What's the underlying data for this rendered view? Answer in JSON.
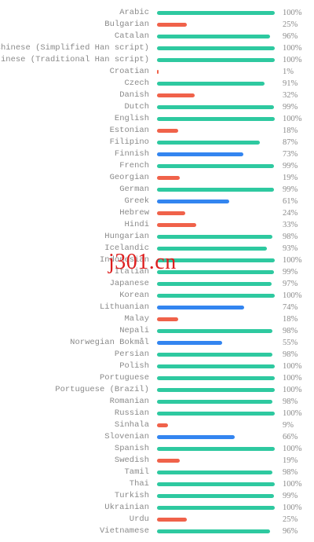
{
  "colors": {
    "high": "#2ec9a0",
    "medium": "#3385f0",
    "low": "#f0624a"
  },
  "watermark": "j301.cn",
  "languages": [
    {
      "name": "Arabic",
      "percent_label": "100%",
      "value": 100,
      "level": "high"
    },
    {
      "name": "Bulgarian",
      "percent_label": "25%",
      "value": 25,
      "level": "low"
    },
    {
      "name": "Catalan",
      "percent_label": "96%",
      "value": 96,
      "level": "high"
    },
    {
      "name": "Chinese (Simplified Han script)",
      "percent_label": "100%",
      "value": 100,
      "level": "high"
    },
    {
      "name": "Chinese (Traditional Han script)",
      "percent_label": "100%",
      "value": 100,
      "level": "high"
    },
    {
      "name": "Croatian",
      "percent_label": "1%",
      "value": 1,
      "level": "low"
    },
    {
      "name": "Czech",
      "percent_label": "91%",
      "value": 91,
      "level": "high"
    },
    {
      "name": "Danish",
      "percent_label": "32%",
      "value": 32,
      "level": "low"
    },
    {
      "name": "Dutch",
      "percent_label": "99%",
      "value": 99,
      "level": "high"
    },
    {
      "name": "English",
      "percent_label": "100%",
      "value": 100,
      "level": "high"
    },
    {
      "name": "Estonian",
      "percent_label": "18%",
      "value": 18,
      "level": "low"
    },
    {
      "name": "Filipino",
      "percent_label": "87%",
      "value": 87,
      "level": "high"
    },
    {
      "name": "Finnish",
      "percent_label": "73%",
      "value": 73,
      "level": "medium"
    },
    {
      "name": "French",
      "percent_label": "99%",
      "value": 99,
      "level": "high"
    },
    {
      "name": "Georgian",
      "percent_label": "19%",
      "value": 19,
      "level": "low"
    },
    {
      "name": "German",
      "percent_label": "99%",
      "value": 99,
      "level": "high"
    },
    {
      "name": "Greek",
      "percent_label": "61%",
      "value": 61,
      "level": "medium"
    },
    {
      "name": "Hebrew",
      "percent_label": "24%",
      "value": 24,
      "level": "low"
    },
    {
      "name": "Hindi",
      "percent_label": "33%",
      "value": 33,
      "level": "low"
    },
    {
      "name": "Hungarian",
      "percent_label": "98%",
      "value": 98,
      "level": "high"
    },
    {
      "name": "Icelandic",
      "percent_label": "93%",
      "value": 93,
      "level": "high"
    },
    {
      "name": "Indonesian",
      "percent_label": "100%",
      "value": 100,
      "level": "high"
    },
    {
      "name": "Italian",
      "percent_label": "99%",
      "value": 99,
      "level": "high"
    },
    {
      "name": "Japanese",
      "percent_label": "97%",
      "value": 97,
      "level": "high"
    },
    {
      "name": "Korean",
      "percent_label": "100%",
      "value": 100,
      "level": "high"
    },
    {
      "name": "Lithuanian",
      "percent_label": "74%",
      "value": 74,
      "level": "medium"
    },
    {
      "name": "Malay",
      "percent_label": "18%",
      "value": 18,
      "level": "low"
    },
    {
      "name": "Nepali",
      "percent_label": "98%",
      "value": 98,
      "level": "high"
    },
    {
      "name": "Norwegian Bokmål",
      "percent_label": "55%",
      "value": 55,
      "level": "medium"
    },
    {
      "name": "Persian",
      "percent_label": "98%",
      "value": 98,
      "level": "high"
    },
    {
      "name": "Polish",
      "percent_label": "100%",
      "value": 100,
      "level": "high"
    },
    {
      "name": "Portuguese",
      "percent_label": "100%",
      "value": 100,
      "level": "high"
    },
    {
      "name": "Portuguese (Brazil)",
      "percent_label": "100%",
      "value": 100,
      "level": "high"
    },
    {
      "name": "Romanian",
      "percent_label": "98%",
      "value": 98,
      "level": "high"
    },
    {
      "name": "Russian",
      "percent_label": "100%",
      "value": 100,
      "level": "high"
    },
    {
      "name": "Sinhala",
      "percent_label": "9%",
      "value": 9,
      "level": "low"
    },
    {
      "name": "Slovenian",
      "percent_label": "66%",
      "value": 66,
      "level": "medium"
    },
    {
      "name": "Spanish",
      "percent_label": "100%",
      "value": 100,
      "level": "high"
    },
    {
      "name": "Swedish",
      "percent_label": "19%",
      "value": 19,
      "level": "low"
    },
    {
      "name": "Tamil",
      "percent_label": "98%",
      "value": 98,
      "level": "high"
    },
    {
      "name": "Thai",
      "percent_label": "100%",
      "value": 100,
      "level": "high"
    },
    {
      "name": "Turkish",
      "percent_label": "99%",
      "value": 99,
      "level": "high"
    },
    {
      "name": "Ukrainian",
      "percent_label": "100%",
      "value": 100,
      "level": "high"
    },
    {
      "name": "Urdu",
      "percent_label": "25%",
      "value": 25,
      "level": "low"
    },
    {
      "name": "Vietnamese",
      "percent_label": "96%",
      "value": 96,
      "level": "high"
    }
  ]
}
